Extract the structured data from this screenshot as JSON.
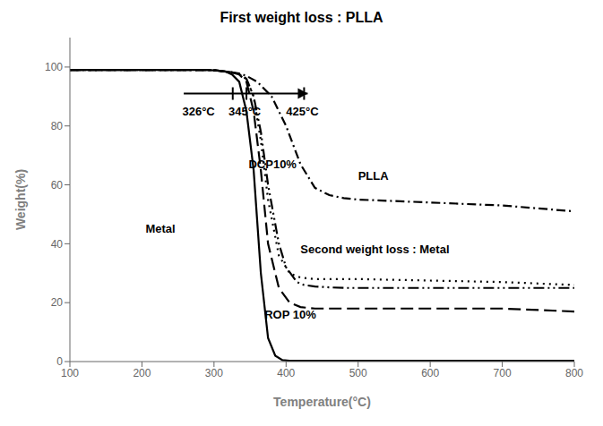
{
  "chart_data": {
    "type": "line",
    "title": "First weight loss : PLLA",
    "xlabel": "Temperature(°C)",
    "ylabel": "Weight(%)",
    "xlim": [
      100,
      800
    ],
    "ylim": [
      0,
      110
    ],
    "xticks": [
      100,
      200,
      300,
      400,
      500,
      600,
      700,
      800
    ],
    "yticks": [
      0,
      20,
      40,
      60,
      80,
      100
    ],
    "grid": false,
    "series": [
      {
        "color": "#000000",
        "line_style": "solid",
        "x": [
          100,
          290,
          305,
          315,
          325,
          335,
          345,
          355,
          365,
          375,
          385,
          395,
          405,
          500,
          600,
          700,
          800
        ],
        "values": [
          99,
          99,
          98.8,
          98.5,
          97.5,
          95,
          85,
          65,
          30,
          8,
          2,
          0.5,
          0.3,
          0.3,
          0.3,
          0.3,
          0.3
        ]
      },
      {
        "color": "#000000",
        "line_style": "dashdot",
        "x": [
          100,
          290,
          305,
          315,
          325,
          335,
          345,
          360,
          380,
          400,
          420,
          440,
          460,
          480,
          500,
          600,
          700,
          800
        ],
        "values": [
          99,
          99,
          98.8,
          98.5,
          98.2,
          97.8,
          97,
          95,
          90,
          80,
          67,
          59,
          56.5,
          55.5,
          55,
          54,
          53,
          51
        ]
      },
      {
        "color": "#000000",
        "line_style": "dashdotdot",
        "x": [
          100,
          290,
          305,
          315,
          325,
          335,
          345,
          355,
          365,
          375,
          390,
          400,
          415,
          425,
          440,
          460,
          480,
          500,
          600,
          700,
          800
        ],
        "values": [
          99,
          99,
          98.8,
          98.5,
          98.2,
          97.5,
          96,
          90,
          78,
          60,
          40,
          32,
          27,
          26,
          25.5,
          25.2,
          25,
          25,
          25,
          25,
          25
        ]
      },
      {
        "color": "#000000",
        "line_style": "dotted",
        "x": [
          100,
          290,
          305,
          315,
          325,
          335,
          345,
          355,
          365,
          375,
          390,
          405,
          420,
          440,
          460,
          480,
          500,
          600,
          700,
          800
        ],
        "values": [
          99,
          99,
          98.8,
          98.5,
          98.2,
          97.5,
          96,
          90,
          75,
          55,
          36,
          30,
          28.5,
          28,
          28,
          28,
          28,
          27.5,
          27,
          26
        ]
      },
      {
        "color": "#000000",
        "line_style": "dashed",
        "x": [
          100,
          290,
          305,
          315,
          325,
          335,
          345,
          355,
          365,
          375,
          390,
          405,
          420,
          440,
          460,
          480,
          500,
          600,
          700,
          800
        ],
        "values": [
          99,
          99,
          98.8,
          98.5,
          98.2,
          97.5,
          95,
          85,
          65,
          40,
          25,
          20,
          18.5,
          18,
          18,
          18,
          18,
          18,
          18,
          17
        ]
      }
    ],
    "annotations": [
      {
        "text": "326°C",
        "x": 256,
        "y": 85
      },
      {
        "text": "345°C",
        "x": 320,
        "y": 85
      },
      {
        "text": "425°C",
        "x": 400,
        "y": 85
      },
      {
        "text": "DCP10%",
        "x": 348,
        "y": 67
      },
      {
        "text": "PLLA",
        "x": 500,
        "y": 63
      },
      {
        "text": "Metal",
        "x": 205,
        "y": 45
      },
      {
        "text": "Second weight loss : Metal",
        "x": 420,
        "y": 38
      },
      {
        "text": "ROP 10%",
        "x": 370,
        "y": 16
      }
    ],
    "arrow": {
      "x_start": 258,
      "x_end": 430,
      "y": 91,
      "marks": [
        326,
        345,
        425
      ]
    }
  }
}
